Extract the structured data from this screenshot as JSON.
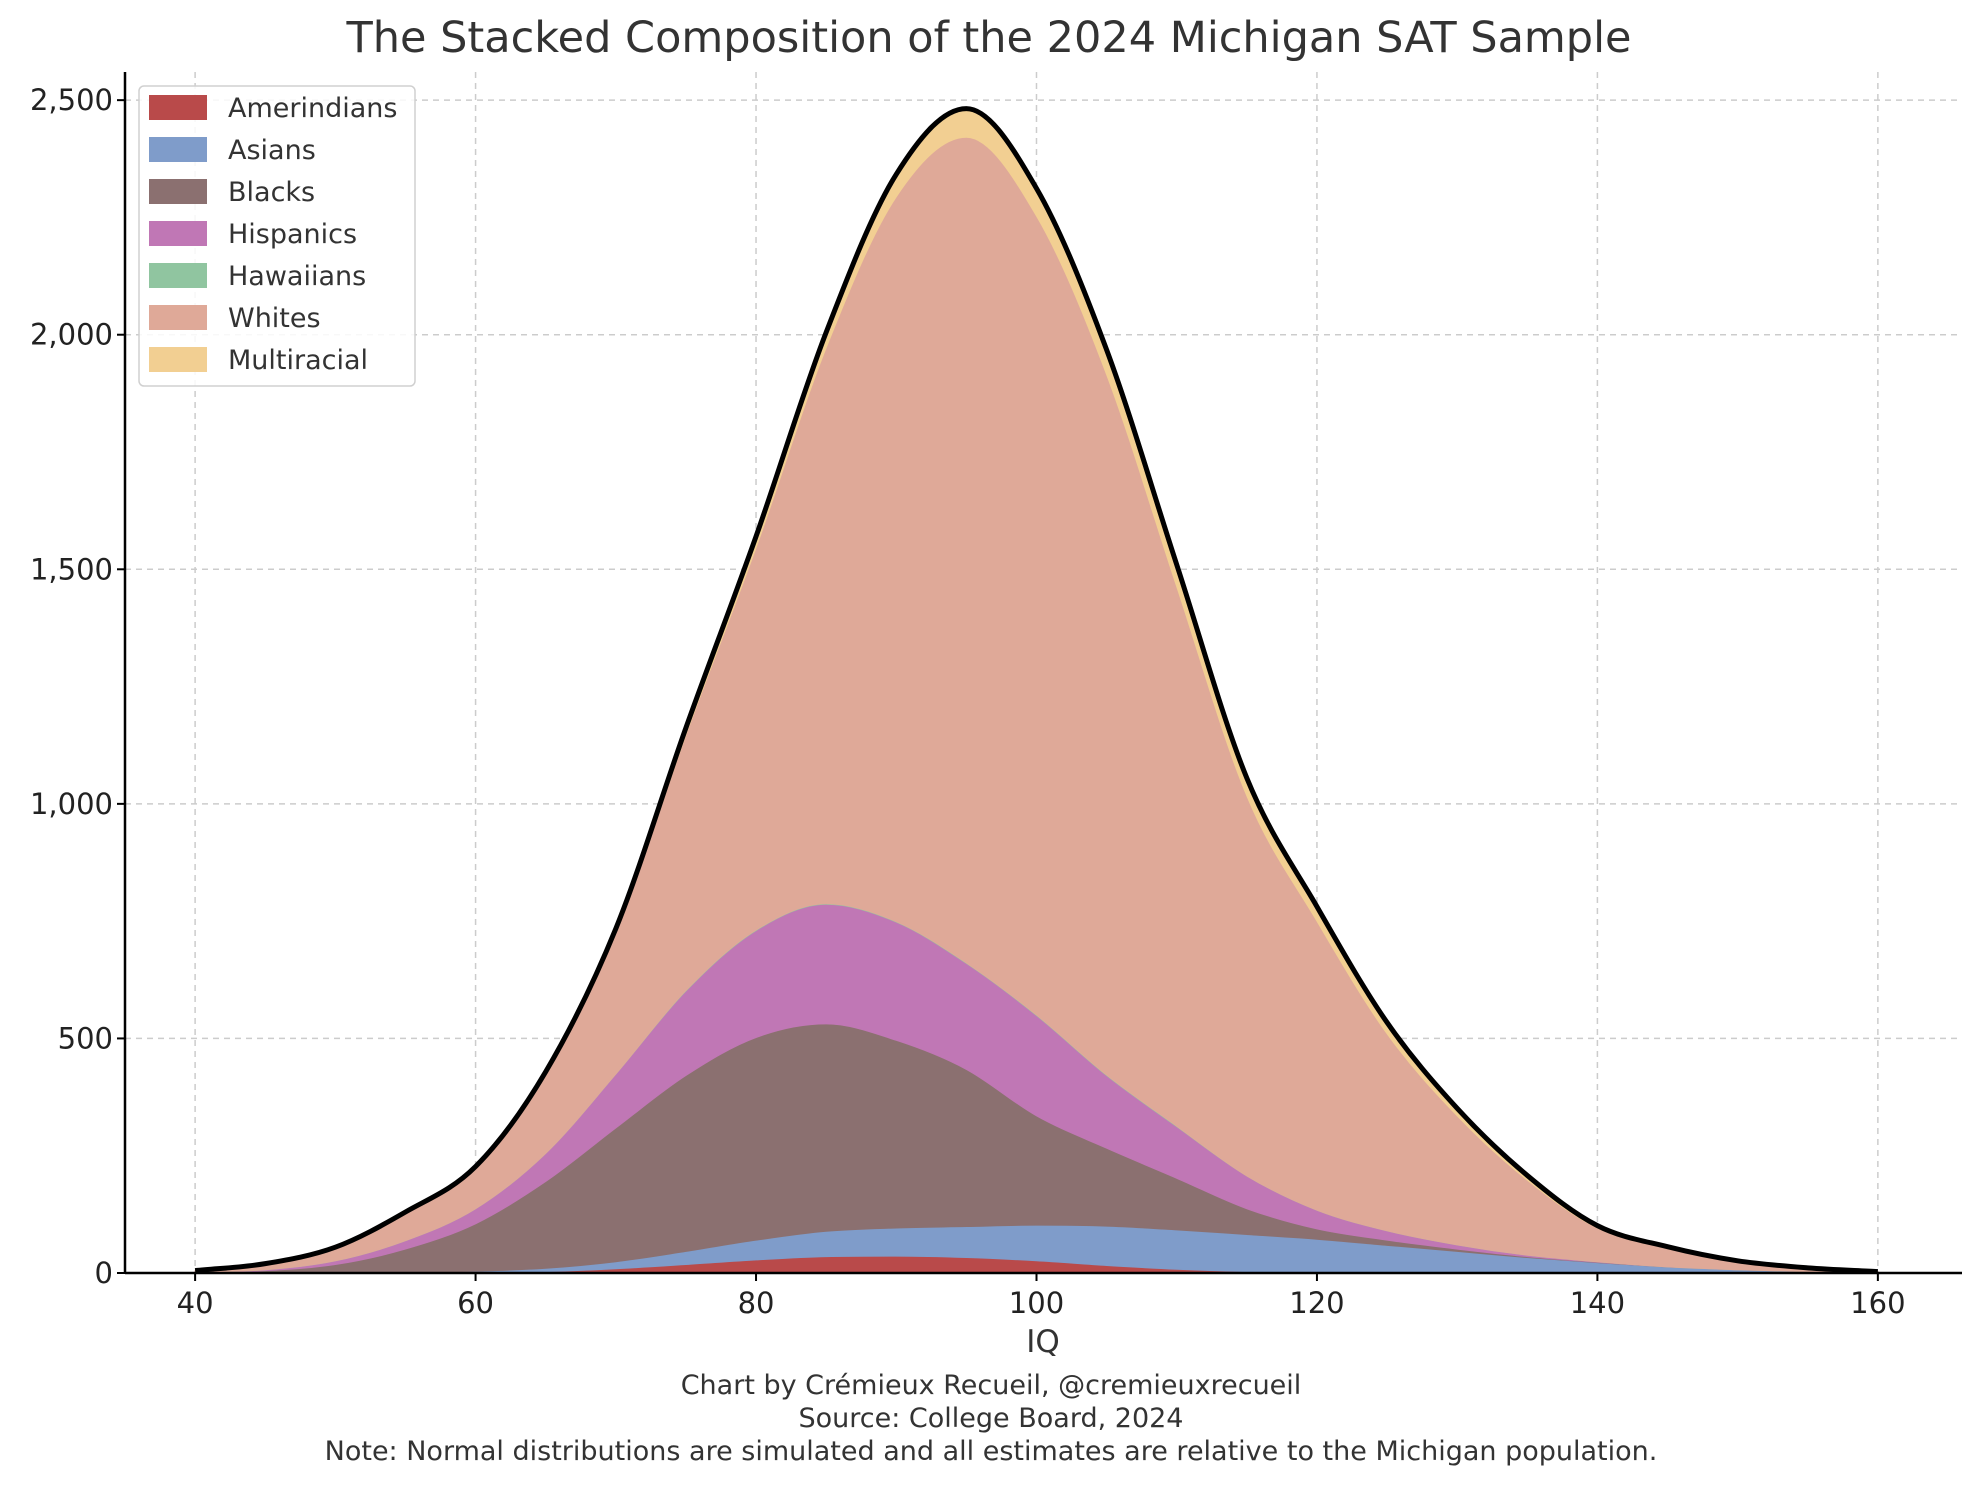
{
  "chart_data": {
    "type": "area",
    "stacked": true,
    "title": "The Stacked Composition of the 2024 Michigan SAT Sample",
    "xlabel": "IQ",
    "ylabel": "",
    "xlim": [
      35,
      166
    ],
    "ylim": [
      0,
      2560
    ],
    "x_ticks": [
      40,
      60,
      80,
      100,
      120,
      140,
      160
    ],
    "y_ticks": [
      0,
      500,
      1000,
      1500,
      2000,
      2500
    ],
    "y_tick_labels": [
      "0",
      "500",
      "1,000",
      "1,500",
      "2,000",
      "2,500"
    ],
    "grid": true,
    "legend_position": "top-left",
    "total_outline": {
      "color": "#000000",
      "peak_x": 97,
      "peak_y": 2445
    },
    "x": [
      40,
      45,
      50,
      55,
      60,
      65,
      70,
      75,
      80,
      85,
      90,
      95,
      100,
      105,
      110,
      115,
      120,
      125,
      130,
      135,
      140,
      145,
      150,
      155,
      160
    ],
    "series": [
      {
        "name": "Amerindians",
        "color": "#b94a4a",
        "values": [
          0,
          0,
          0,
          0,
          1,
          3,
          9,
          18,
          28,
          35,
          36,
          33,
          26,
          16,
          8,
          3,
          1,
          0,
          0,
          0,
          0,
          0,
          0,
          0,
          0
        ]
      },
      {
        "name": "Asians",
        "color": "#7f9cca",
        "values": [
          0,
          0,
          0,
          1,
          3,
          7,
          15,
          28,
          42,
          54,
          60,
          66,
          76,
          84,
          84,
          79,
          71,
          59,
          46,
          33,
          22,
          13,
          7,
          3,
          1
        ]
      },
      {
        "name": "Blacks",
        "color": "#8b7070",
        "values": [
          1,
          5,
          18,
          50,
          101,
          185,
          285,
          375,
          432,
          442,
          400,
          335,
          233,
          166,
          110,
          55,
          22,
          11,
          5,
          2,
          1,
          0,
          0,
          0,
          0
        ]
      },
      {
        "name": "Hispanics",
        "color": "#c077b5",
        "values": [
          0,
          2,
          8,
          18,
          32,
          60,
          115,
          180,
          228,
          255,
          252,
          226,
          214,
          155,
          110,
          70,
          40,
          20,
          9,
          3,
          1,
          0,
          0,
          0,
          0
        ]
      },
      {
        "name": "Hawaiians",
        "color": "#90c5a0",
        "values": [
          0,
          0,
          0,
          0,
          0,
          0,
          0,
          1,
          1,
          1,
          1,
          1,
          1,
          1,
          1,
          0,
          0,
          0,
          0,
          0,
          0,
          0,
          0,
          0,
          0
        ]
      },
      {
        "name": "Whites",
        "color": "#dfa998",
        "values": [
          4,
          13,
          28,
          60,
          88,
          170,
          300,
          545,
          815,
          1185,
          1545,
          1760,
          1703,
          1493,
          1150,
          810,
          616,
          420,
          275,
          160,
          72,
          40,
          18,
          7,
          2
        ]
      },
      {
        "name": "Multiracial",
        "color": "#f2cf92",
        "values": [
          0,
          0,
          1,
          1,
          2,
          4,
          10,
          15,
          24,
          33,
          48,
          61,
          59,
          53,
          47,
          38,
          31,
          24,
          16,
          10,
          5,
          3,
          1,
          1,
          0
        ]
      }
    ],
    "credits": [
      "Chart by Crémieux Recueil, @cremieuxrecueil",
      "Source: College Board, 2024",
      "Note: Normal distributions are simulated and all estimates are relative to the Michigan population."
    ]
  }
}
